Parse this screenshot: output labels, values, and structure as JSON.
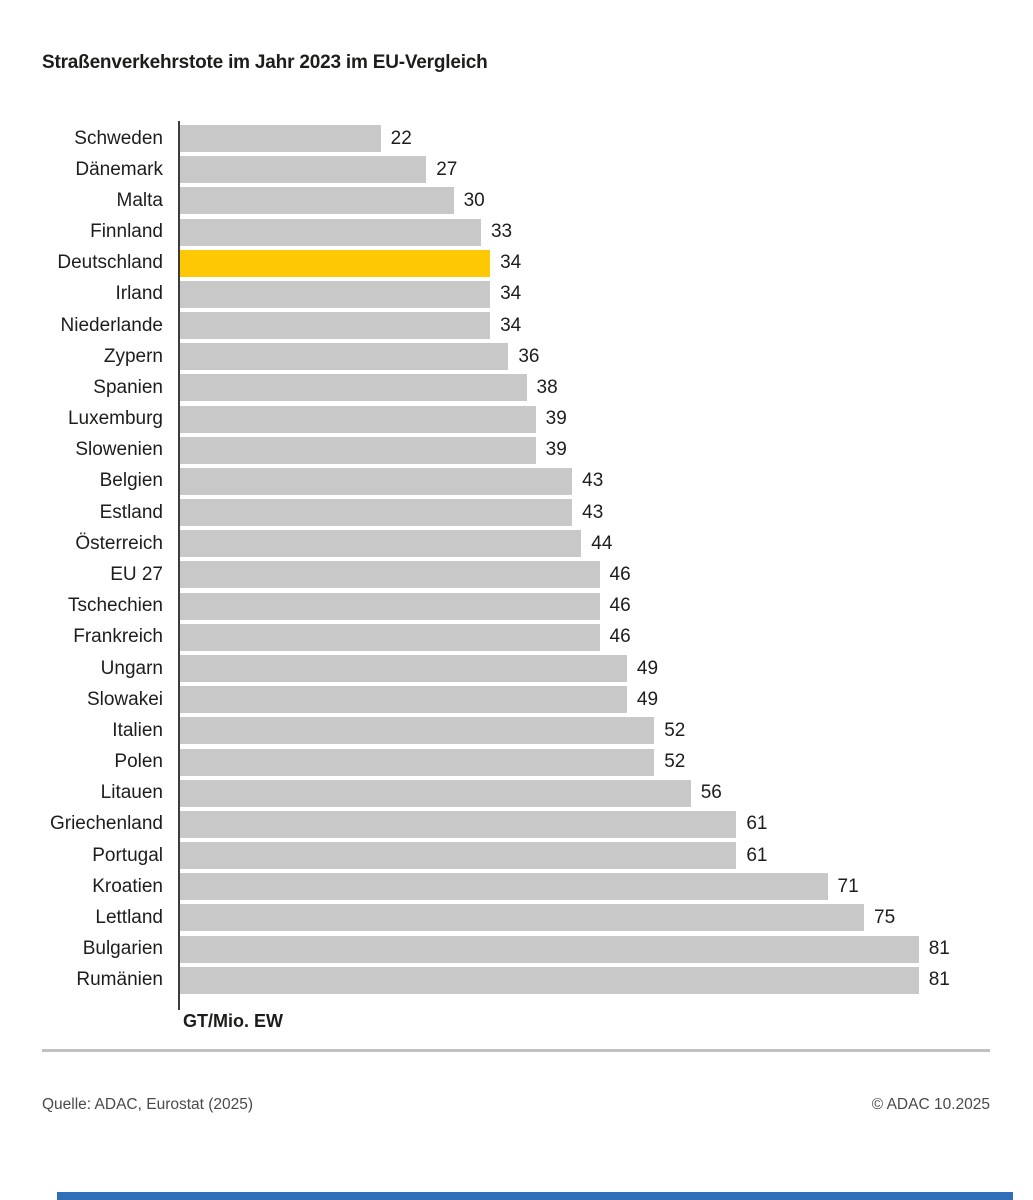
{
  "title": "Straßenverkehrstote im Jahr 2023 im EU-Vergleich",
  "chart_data": {
    "type": "bar",
    "orientation": "horizontal",
    "categories": [
      "Schweden",
      "Dänemark",
      "Malta",
      "Finnland",
      "Deutschland",
      "Irland",
      "Niederlande",
      "Zypern",
      "Spanien",
      "Luxemburg",
      "Slowenien",
      "Belgien",
      "Estland",
      "Österreich",
      "EU 27",
      "Tschechien",
      "Frankreich",
      "Ungarn",
      "Slowakei",
      "Italien",
      "Polen",
      "Litauen",
      "Griechenland",
      "Portugal",
      "Kroatien",
      "Lettland",
      "Bulgarien",
      "Rumänien"
    ],
    "values": [
      22,
      27,
      30,
      33,
      34,
      34,
      34,
      36,
      38,
      39,
      39,
      43,
      43,
      44,
      46,
      46,
      46,
      49,
      49,
      52,
      52,
      56,
      61,
      61,
      71,
      75,
      81,
      81
    ],
    "highlight_category": "Deutschland",
    "xlabel": "GT/Mio. EW",
    "xlim": [
      0,
      91
    ],
    "grid": false,
    "value_labels": "right-of-bar",
    "bar_color": "#c8c8c8",
    "highlight_color": "#ffc805",
    "axis_color": "#3c3c3c"
  },
  "footer": {
    "source": "Quelle: ADAC, Eurostat (2025)",
    "copyright": "© ADAC 10.2025"
  },
  "colors": {
    "text": "#1d1d1b",
    "footer_text": "#4a4a4a",
    "divider": "#c1c1c1",
    "accent_bar_blue": "#2f6fb7",
    "background": "#ffffff"
  }
}
